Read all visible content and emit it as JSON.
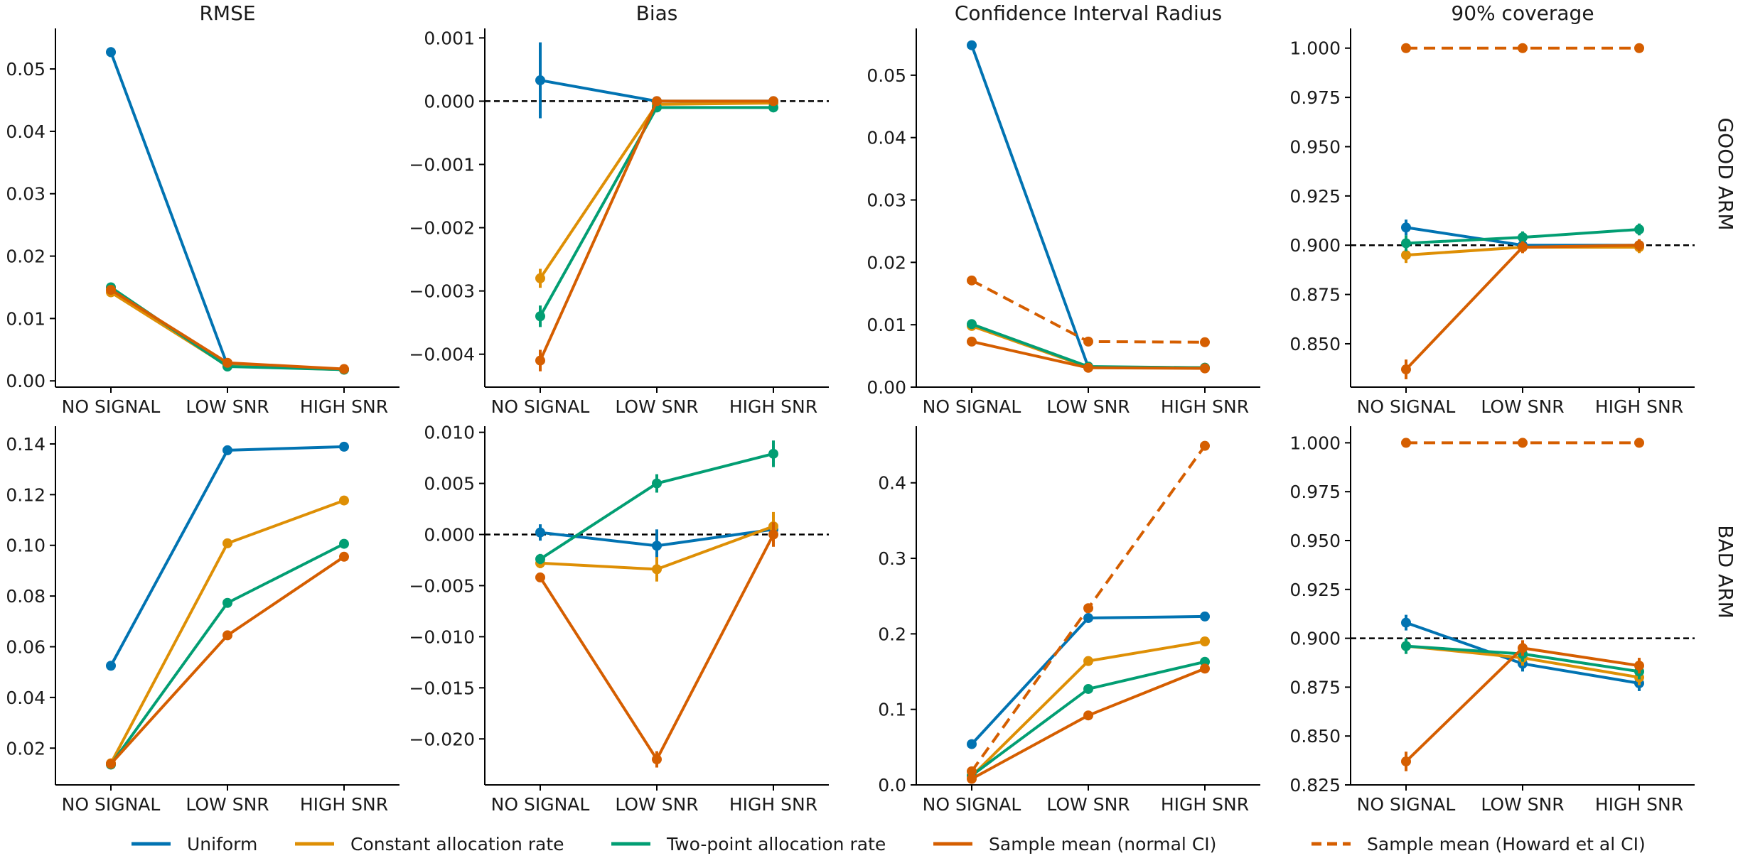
{
  "legend": [
    {
      "name": "Uniform",
      "color": "#0173b2",
      "dash": false
    },
    {
      "name": "Constant allocation rate",
      "color": "#de8f05",
      "dash": false
    },
    {
      "name": "Two-point allocation rate",
      "color": "#029e73",
      "dash": false
    },
    {
      "name": "Sample mean (normal CI)",
      "color": "#d55e00",
      "dash": false
    },
    {
      "name": "Sample mean (Howard et al CI)",
      "color": "#d55e00",
      "dash": true
    }
  ],
  "row_labels": [
    "GOOD ARM",
    "BAD ARM"
  ],
  "chart_data": [
    {
      "type": "line",
      "title": "RMSE",
      "categories": [
        "NO SIGNAL",
        "LOW SNR",
        "HIGH SNR"
      ],
      "ylim": [
        -0.001,
        0.0565
      ],
      "yticks": [
        "0.00",
        "0.01",
        "0.02",
        "0.03",
        "0.04",
        "0.05"
      ],
      "ytick_values": [
        0,
        0.01,
        0.02,
        0.03,
        0.04,
        0.05
      ],
      "series": [
        {
          "values": [
            0.0527,
            0.0025,
            0.0018
          ],
          "err": [
            0.0008,
            0.0003,
            0.0002
          ],
          "color": "#0173b2"
        },
        {
          "values": [
            0.0142,
            0.0024,
            0.0018
          ],
          "err": [
            0.0004,
            0.0002,
            0.0001
          ],
          "color": "#de8f05"
        },
        {
          "values": [
            0.015,
            0.0023,
            0.0018
          ],
          "err": [
            0.0005,
            0.0002,
            0.0001
          ],
          "color": "#029e73"
        },
        {
          "values": [
            0.0146,
            0.0029,
            0.0019
          ],
          "err": [
            0.0004,
            0.0003,
            0.0001
          ],
          "color": "#d55e00"
        }
      ]
    },
    {
      "type": "line",
      "title": "Bias",
      "categories": [
        "NO SIGNAL",
        "LOW SNR",
        "HIGH SNR"
      ],
      "ylim": [
        -0.00452,
        0.00115
      ],
      "yticks": [
        "0.001",
        "0.000",
        "−0.001",
        "−0.002",
        "−0.003",
        "−0.004"
      ],
      "ytick_values": [
        0.001,
        0,
        -0.001,
        -0.002,
        -0.003,
        -0.004
      ],
      "hline": 0,
      "series": [
        {
          "values": [
            0.00033,
            0.0,
            0.0
          ],
          "err": [
            0.0006,
            3e-05,
            2e-05
          ],
          "color": "#0173b2"
        },
        {
          "values": [
            -0.0028,
            -5e-05,
            -3e-05
          ],
          "err": [
            0.00015,
            3e-05,
            2e-05
          ],
          "color": "#de8f05"
        },
        {
          "values": [
            -0.0034,
            -0.0001,
            -0.0001
          ],
          "err": [
            0.00017,
            3e-05,
            2e-05
          ],
          "color": "#029e73"
        },
        {
          "values": [
            -0.0041,
            0.0,
            0.0
          ],
          "err": [
            0.00017,
            3e-05,
            2e-05
          ],
          "color": "#d55e00"
        }
      ]
    },
    {
      "type": "line",
      "title": "Confidence Interval Radius",
      "categories": [
        "NO SIGNAL",
        "LOW SNR",
        "HIGH SNR"
      ],
      "ylim": [
        0,
        0.0575
      ],
      "yticks": [
        "0.00",
        "0.01",
        "0.02",
        "0.03",
        "0.04",
        "0.05"
      ],
      "ytick_values": [
        0,
        0.01,
        0.02,
        0.03,
        0.04,
        0.05
      ],
      "series": [
        {
          "values": [
            0.0548,
            0.0032,
            0.0031
          ],
          "err": [
            0.0006,
            0.0001,
            0.0001
          ],
          "color": "#0173b2"
        },
        {
          "values": [
            0.0098,
            0.0032,
            0.0031
          ],
          "err": [
            0.0002,
            0.0001,
            0.0001
          ],
          "color": "#de8f05"
        },
        {
          "values": [
            0.0101,
            0.0033,
            0.0031
          ],
          "err": [
            0.0002,
            0.0001,
            0.0001
          ],
          "color": "#029e73"
        },
        {
          "values": [
            0.0073,
            0.0031,
            0.003
          ],
          "err": [
            0.0002,
            0.0001,
            0.0001
          ],
          "color": "#d55e00"
        },
        {
          "values": [
            0.0171,
            0.0073,
            0.0072
          ],
          "err": [
            0.0002,
            0.0001,
            0.0001
          ],
          "color": "#d55e00",
          "dash": true
        }
      ]
    },
    {
      "type": "line",
      "title": "90% coverage",
      "categories": [
        "NO SIGNAL",
        "LOW SNR",
        "HIGH SNR"
      ],
      "ylim": [
        0.828,
        1.01
      ],
      "yticks": [
        "1.000",
        "0.975",
        "0.950",
        "0.925",
        "0.900",
        "0.875",
        "0.850"
      ],
      "ytick_values": [
        1.0,
        0.975,
        0.95,
        0.925,
        0.9,
        0.875,
        0.85
      ],
      "hline": 0.9,
      "series": [
        {
          "values": [
            0.909,
            0.9,
            0.9
          ],
          "err": [
            0.004,
            0.003,
            0.003
          ],
          "color": "#0173b2"
        },
        {
          "values": [
            0.895,
            0.899,
            0.899
          ],
          "err": [
            0.004,
            0.003,
            0.003
          ],
          "color": "#de8f05"
        },
        {
          "values": [
            0.901,
            0.904,
            0.908
          ],
          "err": [
            0.004,
            0.003,
            0.003
          ],
          "color": "#029e73"
        },
        {
          "values": [
            0.837,
            0.899,
            0.9
          ],
          "err": [
            0.005,
            0.003,
            0.003
          ],
          "color": "#d55e00"
        },
        {
          "values": [
            1.0,
            1.0,
            1.0
          ],
          "err": [
            0,
            0,
            0
          ],
          "color": "#d55e00",
          "dash": true
        }
      ]
    },
    {
      "type": "line",
      "title": "",
      "categories": [
        "NO SIGNAL",
        "LOW SNR",
        "HIGH SNR"
      ],
      "ylim": [
        0.0055,
        0.147
      ],
      "yticks": [
        "0.02",
        "0.04",
        "0.06",
        "0.08",
        "0.10",
        "0.12",
        "0.14"
      ],
      "ytick_values": [
        0.02,
        0.04,
        0.06,
        0.08,
        0.1,
        0.12,
        0.14
      ],
      "series": [
        {
          "values": [
            0.0525,
            0.1375,
            0.1389
          ],
          "err": [
            0.0006,
            0.0005,
            0.0005
          ],
          "color": "#0173b2"
        },
        {
          "values": [
            0.014,
            0.1008,
            0.1177
          ],
          "err": [
            0.0004,
            0.0005,
            0.0005
          ],
          "color": "#de8f05"
        },
        {
          "values": [
            0.0135,
            0.0773,
            0.1006
          ],
          "err": [
            0.0004,
            0.0005,
            0.0005
          ],
          "color": "#029e73"
        },
        {
          "values": [
            0.0138,
            0.0645,
            0.0955
          ],
          "err": [
            0.0004,
            0.0005,
            0.0005
          ],
          "color": "#d55e00"
        }
      ]
    },
    {
      "type": "line",
      "title": "",
      "categories": [
        "NO SIGNAL",
        "LOW SNR",
        "HIGH SNR"
      ],
      "ylim": [
        -0.0245,
        0.0106
      ],
      "yticks": [
        "0.010",
        "0.005",
        "0.000",
        "−0.005",
        "−0.010",
        "−0.015",
        "−0.020"
      ],
      "ytick_values": [
        0.01,
        0.005,
        0,
        -0.005,
        -0.01,
        -0.015,
        -0.02
      ],
      "hline": 0,
      "series": [
        {
          "values": [
            0.0002,
            -0.0011,
            0.0005
          ],
          "err": [
            0.0008,
            0.0016,
            0.0012
          ],
          "color": "#0173b2"
        },
        {
          "values": [
            -0.0028,
            -0.0034,
            0.0008
          ],
          "err": [
            0.0005,
            0.0012,
            0.0014
          ],
          "color": "#de8f05"
        },
        {
          "values": [
            -0.0024,
            0.005,
            0.0079
          ],
          "err": [
            0.0005,
            0.0009,
            0.0013
          ],
          "color": "#029e73"
        },
        {
          "values": [
            -0.0042,
            -0.022,
            0.0
          ],
          "err": [
            0.0004,
            0.0008,
            0.0012
          ],
          "color": "#d55e00"
        }
      ]
    },
    {
      "type": "line",
      "title": "",
      "categories": [
        "NO SIGNAL",
        "LOW SNR",
        "HIGH SNR"
      ],
      "ylim": [
        0,
        0.475
      ],
      "yticks": [
        "0.0",
        "0.1",
        "0.2",
        "0.3",
        "0.4"
      ],
      "ytick_values": [
        0,
        0.1,
        0.2,
        0.3,
        0.4
      ],
      "series": [
        {
          "values": [
            0.054,
            0.221,
            0.223
          ],
          "err": [
            0.001,
            0.001,
            0.001
          ],
          "color": "#0173b2"
        },
        {
          "values": [
            0.0115,
            0.164,
            0.19
          ],
          "err": [
            0.001,
            0.001,
            0.001
          ],
          "color": "#de8f05"
        },
        {
          "values": [
            0.0125,
            0.127,
            0.163
          ],
          "err": [
            0.001,
            0.001,
            0.001
          ],
          "color": "#029e73"
        },
        {
          "values": [
            0.008,
            0.092,
            0.154
          ],
          "err": [
            0.001,
            0.001,
            0.001
          ],
          "color": "#d55e00"
        },
        {
          "values": [
            0.018,
            0.234,
            0.449
          ],
          "err": [
            0.001,
            0.001,
            0.001
          ],
          "color": "#d55e00",
          "dash": true
        }
      ]
    },
    {
      "type": "line",
      "title": "",
      "categories": [
        "NO SIGNAL",
        "LOW SNR",
        "HIGH SNR"
      ],
      "ylim": [
        0.825,
        1.0085
      ],
      "yticks": [
        "1.000",
        "0.975",
        "0.950",
        "0.925",
        "0.900",
        "0.875",
        "0.850",
        "0.825"
      ],
      "ytick_values": [
        1.0,
        0.975,
        0.95,
        0.925,
        0.9,
        0.875,
        0.85,
        0.825
      ],
      "hline": 0.9,
      "series": [
        {
          "values": [
            0.908,
            0.887,
            0.877
          ],
          "err": [
            0.004,
            0.004,
            0.004
          ],
          "color": "#0173b2"
        },
        {
          "values": [
            0.896,
            0.89,
            0.88
          ],
          "err": [
            0.004,
            0.004,
            0.004
          ],
          "color": "#de8f05"
        },
        {
          "values": [
            0.896,
            0.892,
            0.883
          ],
          "err": [
            0.004,
            0.004,
            0.004
          ],
          "color": "#029e73"
        },
        {
          "values": [
            0.837,
            0.895,
            0.886
          ],
          "err": [
            0.005,
            0.004,
            0.004
          ],
          "color": "#d55e00"
        },
        {
          "values": [
            1.0,
            1.0,
            1.0
          ],
          "err": [
            0,
            0,
            0
          ],
          "color": "#d55e00",
          "dash": true
        }
      ]
    }
  ]
}
